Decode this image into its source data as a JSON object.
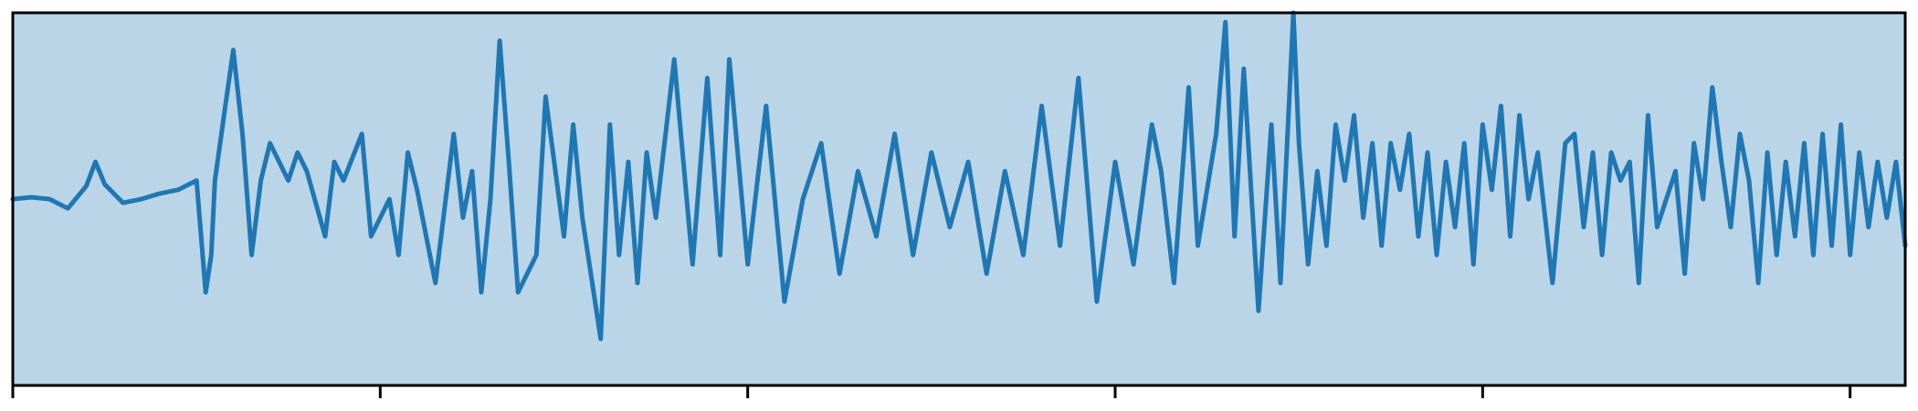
{
  "chart_data": {
    "type": "line",
    "title": "",
    "xlabel": "",
    "ylabel": "",
    "xlim": [
      0,
      1030
    ],
    "ylim": [
      -1.0,
      1.0
    ],
    "xticks": [
      0,
      200,
      400,
      600,
      800,
      1000
    ],
    "grid": false,
    "legend": "none",
    "colors": {
      "background": "#bad5e8",
      "line": "#1f77b4",
      "frame": "#000000"
    },
    "series": [
      {
        "color": "#1f77b4",
        "points": [
          [
            0,
            0.0
          ],
          [
            10,
            0.01
          ],
          [
            20,
            0.0
          ],
          [
            30,
            -0.05
          ],
          [
            40,
            0.07
          ],
          [
            45,
            0.2
          ],
          [
            50,
            0.08
          ],
          [
            60,
            -0.02
          ],
          [
            70,
            0.0
          ],
          [
            80,
            0.03
          ],
          [
            90,
            0.05
          ],
          [
            100,
            0.1
          ],
          [
            105,
            -0.5
          ],
          [
            108,
            -0.3
          ],
          [
            110,
            0.1
          ],
          [
            115,
            0.45
          ],
          [
            120,
            0.8
          ],
          [
            125,
            0.35
          ],
          [
            130,
            -0.3
          ],
          [
            135,
            0.1
          ],
          [
            140,
            0.3
          ],
          [
            150,
            0.1
          ],
          [
            155,
            0.25
          ],
          [
            160,
            0.15
          ],
          [
            170,
            -0.2
          ],
          [
            175,
            0.2
          ],
          [
            180,
            0.1
          ],
          [
            190,
            0.35
          ],
          [
            195,
            -0.2
          ],
          [
            205,
            0.0
          ],
          [
            210,
            -0.3
          ],
          [
            215,
            0.25
          ],
          [
            220,
            0.05
          ],
          [
            230,
            -0.45
          ],
          [
            240,
            0.35
          ],
          [
            245,
            -0.1
          ],
          [
            250,
            0.15
          ],
          [
            255,
            -0.5
          ],
          [
            260,
            0.0
          ],
          [
            265,
            0.85
          ],
          [
            270,
            0.2
          ],
          [
            275,
            -0.5
          ],
          [
            285,
            -0.3
          ],
          [
            290,
            0.55
          ],
          [
            300,
            -0.2
          ],
          [
            305,
            0.4
          ],
          [
            310,
            -0.1
          ],
          [
            320,
            -0.75
          ],
          [
            325,
            0.4
          ],
          [
            330,
            -0.3
          ],
          [
            335,
            0.2
          ],
          [
            340,
            -0.45
          ],
          [
            345,
            0.25
          ],
          [
            350,
            -0.1
          ],
          [
            360,
            0.75
          ],
          [
            370,
            -0.35
          ],
          [
            378,
            0.65
          ],
          [
            385,
            -0.3
          ],
          [
            390,
            0.75
          ],
          [
            400,
            -0.35
          ],
          [
            410,
            0.5
          ],
          [
            420,
            -0.55
          ],
          [
            430,
            0.0
          ],
          [
            440,
            0.3
          ],
          [
            450,
            -0.4
          ],
          [
            460,
            0.15
          ],
          [
            470,
            -0.2
          ],
          [
            480,
            0.35
          ],
          [
            490,
            -0.3
          ],
          [
            500,
            0.25
          ],
          [
            510,
            -0.15
          ],
          [
            520,
            0.2
          ],
          [
            530,
            -0.4
          ],
          [
            540,
            0.15
          ],
          [
            550,
            -0.3
          ],
          [
            560,
            0.5
          ],
          [
            570,
            -0.25
          ],
          [
            580,
            0.65
          ],
          [
            590,
            -0.55
          ],
          [
            600,
            0.2
          ],
          [
            610,
            -0.35
          ],
          [
            620,
            0.4
          ],
          [
            625,
            0.15
          ],
          [
            632,
            -0.45
          ],
          [
            640,
            0.6
          ],
          [
            645,
            -0.25
          ],
          [
            655,
            0.35
          ],
          [
            660,
            0.95
          ],
          [
            665,
            -0.2
          ],
          [
            670,
            0.7
          ],
          [
            678,
            -0.6
          ],
          [
            685,
            0.4
          ],
          [
            690,
            -0.45
          ],
          [
            697,
            1.0
          ],
          [
            700,
            0.3
          ],
          [
            705,
            -0.35
          ],
          [
            710,
            0.15
          ],
          [
            715,
            -0.25
          ],
          [
            720,
            0.4
          ],
          [
            725,
            0.1
          ],
          [
            730,
            0.45
          ],
          [
            735,
            -0.1
          ],
          [
            740,
            0.3
          ],
          [
            745,
            -0.25
          ],
          [
            750,
            0.3
          ],
          [
            755,
            0.05
          ],
          [
            760,
            0.35
          ],
          [
            765,
            -0.2
          ],
          [
            770,
            0.25
          ],
          [
            775,
            -0.3
          ],
          [
            780,
            0.2
          ],
          [
            785,
            -0.15
          ],
          [
            790,
            0.3
          ],
          [
            795,
            -0.35
          ],
          [
            800,
            0.4
          ],
          [
            805,
            0.05
          ],
          [
            810,
            0.5
          ],
          [
            815,
            -0.2
          ],
          [
            820,
            0.45
          ],
          [
            825,
            0.0
          ],
          [
            830,
            0.25
          ],
          [
            838,
            -0.45
          ],
          [
            845,
            0.3
          ],
          [
            850,
            0.35
          ],
          [
            855,
            -0.15
          ],
          [
            860,
            0.25
          ],
          [
            865,
            -0.3
          ],
          [
            870,
            0.25
          ],
          [
            875,
            0.1
          ],
          [
            880,
            0.2
          ],
          [
            885,
            -0.45
          ],
          [
            890,
            0.45
          ],
          [
            895,
            -0.15
          ],
          [
            905,
            0.15
          ],
          [
            910,
            -0.4
          ],
          [
            915,
            0.3
          ],
          [
            920,
            0.0
          ],
          [
            925,
            0.6
          ],
          [
            930,
            0.2
          ],
          [
            935,
            -0.15
          ],
          [
            940,
            0.35
          ],
          [
            945,
            0.1
          ],
          [
            950,
            -0.45
          ],
          [
            955,
            0.25
          ],
          [
            960,
            -0.3
          ],
          [
            965,
            0.2
          ],
          [
            970,
            -0.2
          ],
          [
            975,
            0.3
          ],
          [
            980,
            -0.3
          ],
          [
            985,
            0.35
          ],
          [
            990,
            -0.25
          ],
          [
            995,
            0.4
          ],
          [
            1000,
            -0.3
          ],
          [
            1005,
            0.25
          ],
          [
            1010,
            -0.15
          ],
          [
            1015,
            0.2
          ],
          [
            1020,
            -0.1
          ],
          [
            1025,
            0.2
          ],
          [
            1030,
            -0.25
          ]
        ]
      }
    ]
  }
}
